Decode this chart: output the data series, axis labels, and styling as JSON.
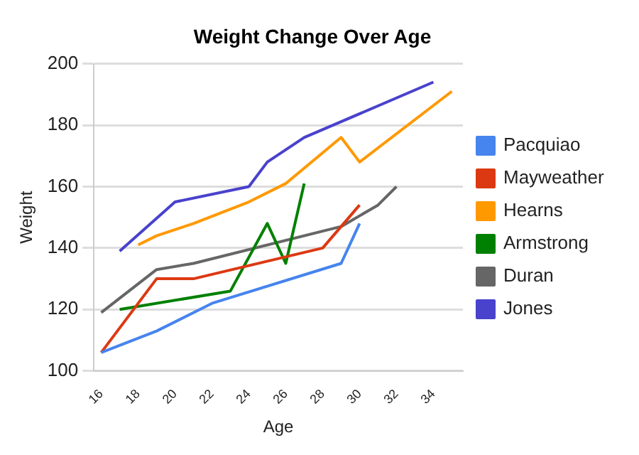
{
  "chart_data": {
    "type": "line",
    "title": "Weight Change Over Age",
    "xlabel": "Age",
    "ylabel": "Weight",
    "xlim": [
      15.6,
      35.6
    ],
    "xticks": [
      16,
      18,
      20,
      22,
      24,
      26,
      28,
      30,
      32,
      34
    ],
    "ylim": [
      100,
      200
    ],
    "yticks": [
      100,
      120,
      140,
      160,
      180,
      200
    ],
    "grid": "y",
    "legend": "right",
    "marker": "none",
    "series": [
      {
        "name": "Pacquiao",
        "color": "#4684ee",
        "x": [
          16,
          19,
          22,
          29,
          30
        ],
        "values": [
          106,
          113,
          122,
          135,
          148
        ]
      },
      {
        "name": "Mayweather",
        "color": "#dc3912",
        "x": [
          16,
          19,
          21,
          28,
          30
        ],
        "values": [
          106,
          130,
          130,
          140,
          154
        ]
      },
      {
        "name": "Hearns",
        "color": "#ff9900",
        "x": [
          18,
          19,
          21,
          24,
          26,
          29,
          30,
          35
        ],
        "values": [
          141,
          144,
          148,
          155,
          161,
          176,
          168,
          191
        ]
      },
      {
        "name": "Armstrong",
        "color": "#008000",
        "x": [
          17,
          23,
          25,
          26,
          27
        ],
        "values": [
          120,
          126,
          148,
          135,
          161
        ]
      },
      {
        "name": "Duran",
        "color": "#666666",
        "x": [
          16,
          19,
          21,
          29,
          31,
          32
        ],
        "values": [
          119,
          133,
          135,
          147,
          154,
          160
        ]
      },
      {
        "name": "Jones",
        "color": "#4942cc",
        "x": [
          17,
          20,
          24,
          25,
          27,
          34
        ],
        "values": [
          139,
          155,
          160,
          168,
          176,
          194
        ]
      }
    ]
  }
}
